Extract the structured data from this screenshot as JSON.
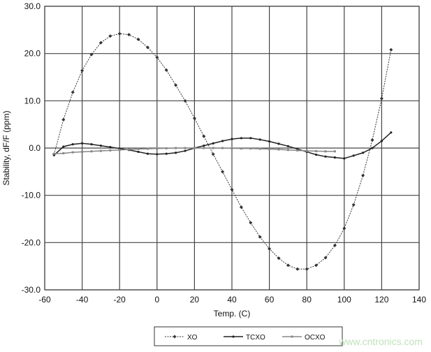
{
  "chart_data": {
    "type": "line",
    "title": "",
    "xlabel": "Temp. (C)",
    "ylabel": "Stability, dF/F (ppm)",
    "xlim": [
      -60,
      140
    ],
    "ylim": [
      -30,
      30
    ],
    "xticks": [
      "-60",
      "-40",
      "-20",
      "0",
      "20",
      "40",
      "60",
      "80",
      "100",
      "120",
      "140"
    ],
    "yticks": [
      "30.0",
      "20.0",
      "10.0",
      "0.0",
      "-10.0",
      "-20.0",
      "-30.0"
    ],
    "grid": true,
    "legend": "bottom",
    "series": [
      {
        "name": "XO",
        "color": "#333333",
        "style": "dotted",
        "marker": "diamond",
        "x": [
          -55,
          -50,
          -45,
          -40,
          -35,
          -30,
          -25,
          -20,
          -15,
          -10,
          -5,
          0,
          5,
          10,
          15,
          20,
          25,
          30,
          35,
          40,
          45,
          50,
          55,
          60,
          65,
          70,
          75,
          80,
          85,
          90,
          95,
          100,
          105,
          110,
          115,
          120,
          125
        ],
        "y": [
          -1.3,
          6.0,
          11.8,
          16.4,
          19.8,
          22.3,
          23.7,
          24.2,
          24.0,
          23.0,
          21.3,
          19.2,
          16.5,
          13.3,
          10.0,
          6.3,
          2.5,
          -1.3,
          -5.0,
          -8.8,
          -12.5,
          -15.8,
          -18.8,
          -21.3,
          -23.3,
          -24.8,
          -25.6,
          -25.6,
          -24.8,
          -23.2,
          -20.6,
          -17.0,
          -12.0,
          -5.8,
          1.7,
          10.5,
          20.8
        ]
      },
      {
        "name": "TCXO",
        "color": "#222222",
        "style": "solid",
        "marker": "dot",
        "x": [
          -55,
          -50,
          -45,
          -40,
          -35,
          -30,
          -25,
          -20,
          -15,
          -10,
          -5,
          0,
          5,
          10,
          15,
          20,
          25,
          30,
          35,
          40,
          45,
          50,
          55,
          60,
          65,
          70,
          75,
          80,
          85,
          90,
          95,
          100,
          105,
          110,
          115,
          120,
          125
        ],
        "y": [
          -1.5,
          0.3,
          0.8,
          1.0,
          0.8,
          0.5,
          0.2,
          -0.1,
          -0.4,
          -0.8,
          -1.2,
          -1.3,
          -1.2,
          -1.0,
          -0.6,
          0.0,
          0.5,
          1.0,
          1.5,
          1.9,
          2.1,
          2.1,
          1.8,
          1.4,
          0.9,
          0.4,
          -0.2,
          -0.8,
          -1.4,
          -1.8,
          -2.0,
          -2.2,
          -1.6,
          -1.0,
          0.0,
          1.5,
          3.3
        ]
      },
      {
        "name": "OCXO",
        "color": "#888888",
        "style": "solid",
        "marker": "square",
        "x": [
          -55,
          -50,
          -45,
          -40,
          -35,
          -30,
          -25,
          -20,
          -15,
          -10,
          -5,
          0,
          5,
          10,
          15,
          20,
          25,
          30,
          35,
          40,
          45,
          50,
          55,
          60,
          65,
          70,
          75,
          80,
          85,
          90,
          95
        ],
        "y": [
          -1.2,
          -1.1,
          -0.9,
          -0.8,
          -0.7,
          -0.6,
          -0.5,
          -0.4,
          -0.3,
          -0.2,
          -0.15,
          -0.1,
          -0.05,
          0.0,
          0.0,
          0.0,
          0.0,
          0.0,
          0.0,
          -0.05,
          -0.1,
          -0.1,
          -0.15,
          -0.2,
          -0.3,
          -0.4,
          -0.5,
          -0.6,
          -0.65,
          -0.7,
          -0.7
        ]
      }
    ]
  },
  "watermark": "www.cntronics.com"
}
